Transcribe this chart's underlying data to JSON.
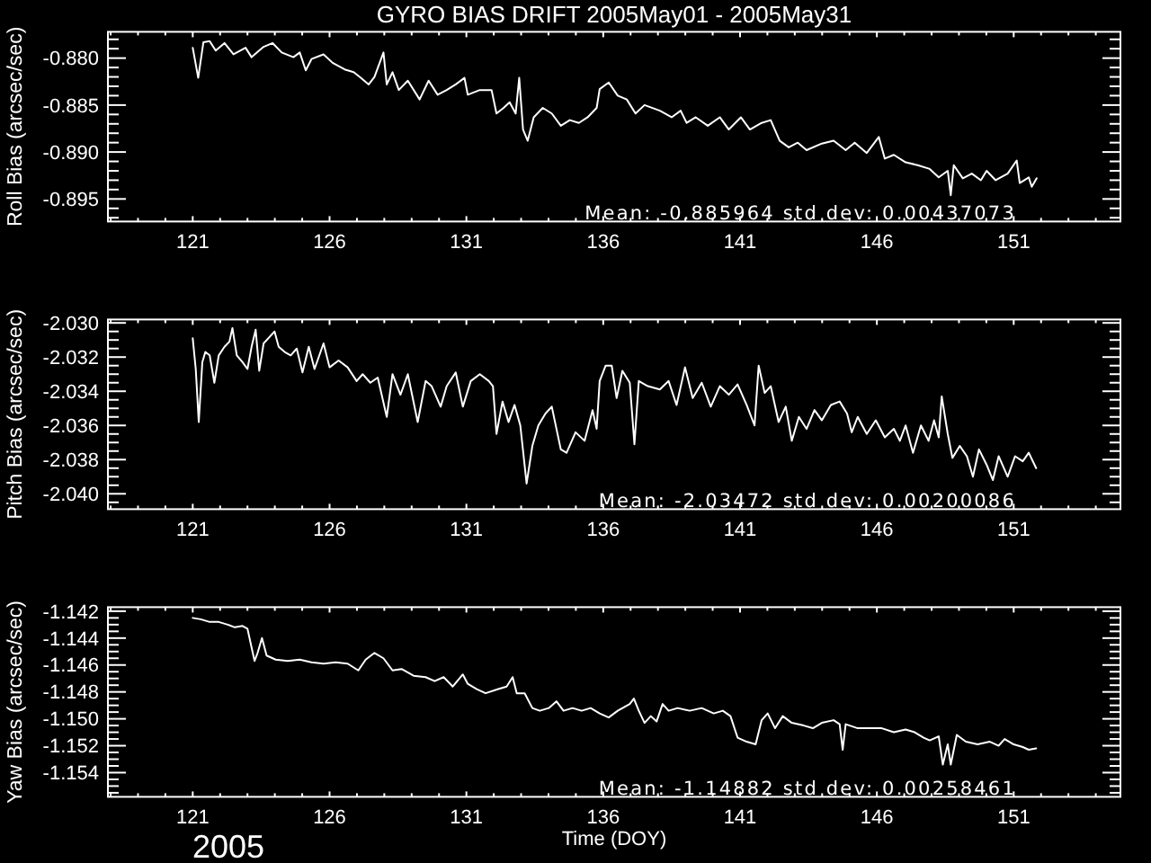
{
  "chart_data": [
    {
      "type": "line",
      "title": "GYRO BIAS DRIFT 2005May01 - 2005May31",
      "ylabel": "Roll Bias (arcsec/sec)",
      "x": [
        121.0,
        121.2,
        121.39,
        121.62,
        121.84,
        122.16,
        122.49,
        122.93,
        123.15,
        123.59,
        123.92,
        124.25,
        124.68,
        124.91,
        125.13,
        125.34,
        125.78,
        126.11,
        126.55,
        126.88,
        127.1,
        127.43,
        127.64,
        127.97,
        128.09,
        128.3,
        128.53,
        128.86,
        129.29,
        129.62,
        129.95,
        130.28,
        130.61,
        130.93,
        131.05,
        131.49,
        131.92,
        132.1,
        132.36,
        132.58,
        132.8,
        132.93,
        133.07,
        133.24,
        133.46,
        133.79,
        134.12,
        134.45,
        134.78,
        135.11,
        135.43,
        135.76,
        135.87,
        136.2,
        136.53,
        136.86,
        137.18,
        137.51,
        138.07,
        138.5,
        138.83,
        139.05,
        139.38,
        139.82,
        140.26,
        140.59,
        141.03,
        141.36,
        141.79,
        142.12,
        142.45,
        142.78,
        143.11,
        143.43,
        143.99,
        144.42,
        144.86,
        145.19,
        145.63,
        146.07,
        146.29,
        146.62,
        147.05,
        147.49,
        147.93,
        148.26,
        148.59,
        148.7,
        148.81,
        149.14,
        149.47,
        149.8,
        150.01,
        150.34,
        150.78,
        151.11,
        151.22,
        151.55,
        151.66,
        151.84
      ],
      "series": [
        {
          "color": "#ffffff",
          "values": [
            -0.8789,
            -0.8821,
            -0.8783,
            -0.8782,
            -0.8792,
            -0.8784,
            -0.8796,
            -0.8789,
            -0.8799,
            -0.8788,
            -0.8784,
            -0.8794,
            -0.8799,
            -0.8794,
            -0.8813,
            -0.8801,
            -0.8796,
            -0.8805,
            -0.8812,
            -0.8815,
            -0.882,
            -0.8828,
            -0.882,
            -0.8794,
            -0.8828,
            -0.8815,
            -0.8834,
            -0.8824,
            -0.8844,
            -0.8824,
            -0.8839,
            -0.8834,
            -0.8828,
            -0.8821,
            -0.8839,
            -0.8834,
            -0.8834,
            -0.8859,
            -0.8853,
            -0.8847,
            -0.8859,
            -0.8821,
            -0.8876,
            -0.8888,
            -0.8863,
            -0.8853,
            -0.8859,
            -0.8872,
            -0.8866,
            -0.8869,
            -0.8863,
            -0.8853,
            -0.8833,
            -0.8826,
            -0.884,
            -0.8844,
            -0.8859,
            -0.885,
            -0.8856,
            -0.8863,
            -0.8856,
            -0.8869,
            -0.8863,
            -0.8872,
            -0.8863,
            -0.8876,
            -0.8863,
            -0.8876,
            -0.8869,
            -0.8866,
            -0.8888,
            -0.8895,
            -0.889,
            -0.8898,
            -0.8891,
            -0.8888,
            -0.8898,
            -0.889,
            -0.8901,
            -0.8884,
            -0.8907,
            -0.8903,
            -0.8911,
            -0.8914,
            -0.8918,
            -0.8927,
            -0.892,
            -0.8946,
            -0.8914,
            -0.8928,
            -0.8923,
            -0.893,
            -0.892,
            -0.893,
            -0.8923,
            -0.8909,
            -0.8933,
            -0.8927,
            -0.8937,
            -0.8928
          ]
        }
      ],
      "xlim": [
        117.9,
        154.9
      ],
      "xticks": [
        {
          "value": 118,
          "label": null
        },
        {
          "value": 119,
          "label": null
        },
        {
          "value": 120,
          "label": null
        },
        121,
        {
          "value": 122,
          "label": null
        },
        {
          "value": 123,
          "label": null
        },
        {
          "value": 124,
          "label": null
        },
        {
          "value": 125,
          "label": null
        },
        126,
        {
          "value": 127,
          "label": null
        },
        {
          "value": 128,
          "label": null
        },
        {
          "value": 129,
          "label": null
        },
        {
          "value": 130,
          "label": null
        },
        131,
        {
          "value": 132,
          "label": null
        },
        {
          "value": 133,
          "label": null
        },
        {
          "value": 134,
          "label": null
        },
        {
          "value": 135,
          "label": null
        },
        136,
        {
          "value": 137,
          "label": null
        },
        {
          "value": 138,
          "label": null
        },
        {
          "value": 139,
          "label": null
        },
        {
          "value": 140,
          "label": null
        },
        141,
        {
          "value": 142,
          "label": null
        },
        {
          "value": 143,
          "label": null
        },
        {
          "value": 144,
          "label": null
        },
        {
          "value": 145,
          "label": null
        },
        146,
        {
          "value": 147,
          "label": null
        },
        {
          "value": 148,
          "label": null
        },
        {
          "value": 149,
          "label": null
        },
        {
          "value": 150,
          "label": null
        },
        151,
        {
          "value": 152,
          "label": null
        },
        {
          "value": 153,
          "label": null
        },
        {
          "value": 154,
          "label": null
        }
      ],
      "ylim": [
        -0.8974,
        -0.8772
      ],
      "yticks": [
        {
          "value": -0.897,
          "label": null
        },
        {
          "value": -0.896,
          "label": null
        },
        {
          "value": -0.895,
          "label": "-0.895"
        },
        {
          "value": -0.894,
          "label": null
        },
        {
          "value": -0.893,
          "label": null
        },
        {
          "value": -0.892,
          "label": null
        },
        {
          "value": -0.891,
          "label": null
        },
        {
          "value": -0.89,
          "label": "-0.890"
        },
        {
          "value": -0.889,
          "label": null
        },
        {
          "value": -0.888,
          "label": null
        },
        {
          "value": -0.887,
          "label": null
        },
        {
          "value": -0.886,
          "label": null
        },
        {
          "value": -0.885,
          "label": "-0.885"
        },
        {
          "value": -0.884,
          "label": null
        },
        {
          "value": -0.883,
          "label": null
        },
        {
          "value": -0.882,
          "label": null
        },
        {
          "value": -0.881,
          "label": null
        },
        {
          "value": -0.88,
          "label": "-0.880"
        },
        {
          "value": -0.879,
          "label": null
        },
        {
          "value": -0.878,
          "label": null
        }
      ],
      "annotations": [
        "Mean: -0.885964 std dev: 0.00437073"
      ]
    },
    {
      "type": "line",
      "ylabel": "Pitch Bias (arcsec/sec)",
      "x": [
        121.0,
        121.11,
        121.22,
        121.35,
        121.46,
        121.62,
        121.79,
        121.95,
        122.16,
        122.34,
        122.45,
        122.61,
        122.82,
        123.0,
        123.15,
        123.3,
        123.43,
        123.59,
        123.76,
        123.99,
        124.14,
        124.36,
        124.58,
        124.8,
        125.01,
        125.24,
        125.45,
        125.78,
        126.0,
        126.33,
        126.66,
        126.99,
        127.21,
        127.49,
        127.76,
        128.09,
        128.3,
        128.59,
        128.86,
        129.22,
        129.51,
        129.73,
        130.06,
        130.28,
        130.61,
        130.87,
        131.16,
        131.49,
        131.82,
        131.97,
        132.1,
        132.32,
        132.54,
        132.76,
        132.97,
        133.2,
        133.41,
        133.63,
        133.89,
        134.12,
        134.45,
        134.66,
        134.99,
        135.32,
        135.61,
        135.76,
        135.87,
        136.09,
        136.31,
        136.49,
        136.7,
        136.97,
        137.14,
        137.3,
        137.63,
        138.07,
        138.39,
        138.68,
        138.99,
        139.27,
        139.6,
        139.93,
        140.26,
        140.59,
        140.91,
        141.24,
        141.53,
        141.68,
        141.9,
        142.12,
        142.41,
        142.67,
        142.89,
        143.15,
        143.43,
        143.72,
        143.99,
        144.32,
        144.64,
        144.91,
        145.08,
        145.3,
        145.63,
        145.96,
        146.29,
        146.62,
        146.84,
        147.05,
        147.32,
        147.61,
        147.89,
        148.09,
        148.26,
        148.37,
        148.59,
        148.76,
        149.03,
        149.29,
        149.51,
        149.73,
        150.01,
        150.24,
        150.45,
        150.78,
        151.05,
        151.33,
        151.55,
        151.82
      ],
      "series": [
        {
          "color": "#ffffff",
          "values": [
            -2.0309,
            -2.0327,
            -2.0358,
            -2.0323,
            -2.0317,
            -2.0319,
            -2.0335,
            -2.0319,
            -2.0314,
            -2.0311,
            -2.0303,
            -2.0319,
            -2.0323,
            -2.0327,
            -2.0314,
            -2.0304,
            -2.0328,
            -2.0312,
            -2.0309,
            -2.0305,
            -2.0314,
            -2.0317,
            -2.0319,
            -2.0315,
            -2.0329,
            -2.0314,
            -2.0327,
            -2.0312,
            -2.0326,
            -2.0322,
            -2.0326,
            -2.0334,
            -2.033,
            -2.0335,
            -2.0332,
            -2.0355,
            -2.033,
            -2.0342,
            -2.033,
            -2.0358,
            -2.0334,
            -2.0337,
            -2.0349,
            -2.0337,
            -2.0329,
            -2.0349,
            -2.0334,
            -2.033,
            -2.0334,
            -2.0337,
            -2.0365,
            -2.0346,
            -2.0358,
            -2.0348,
            -2.036,
            -2.0394,
            -2.0372,
            -2.036,
            -2.0353,
            -2.0349,
            -2.0374,
            -2.0376,
            -2.0364,
            -2.0369,
            -2.0351,
            -2.0362,
            -2.0334,
            -2.0325,
            -2.0325,
            -2.0344,
            -2.0328,
            -2.0335,
            -2.0371,
            -2.0334,
            -2.0337,
            -2.0339,
            -2.0334,
            -2.0348,
            -2.0326,
            -2.0344,
            -2.0335,
            -2.0349,
            -2.0337,
            -2.0342,
            -2.0336,
            -2.0348,
            -2.036,
            -2.0325,
            -2.0341,
            -2.0337,
            -2.0358,
            -2.0349,
            -2.0369,
            -2.0355,
            -2.0362,
            -2.0351,
            -2.0357,
            -2.0348,
            -2.0346,
            -2.0353,
            -2.0364,
            -2.0355,
            -2.0365,
            -2.0357,
            -2.0367,
            -2.0362,
            -2.0369,
            -2.036,
            -2.0376,
            -2.036,
            -2.0369,
            -2.0357,
            -2.0367,
            -2.0343,
            -2.0365,
            -2.0379,
            -2.0372,
            -2.0378,
            -2.039,
            -2.0374,
            -2.0383,
            -2.0392,
            -2.0378,
            -2.039,
            -2.0378,
            -2.0381,
            -2.0376,
            -2.0385
          ]
        }
      ],
      "xlim": [
        117.9,
        154.9
      ],
      "xticks": [
        {
          "value": 118,
          "label": null
        },
        {
          "value": 119,
          "label": null
        },
        {
          "value": 120,
          "label": null
        },
        121,
        {
          "value": 122,
          "label": null
        },
        {
          "value": 123,
          "label": null
        },
        {
          "value": 124,
          "label": null
        },
        {
          "value": 125,
          "label": null
        },
        126,
        {
          "value": 127,
          "label": null
        },
        {
          "value": 128,
          "label": null
        },
        {
          "value": 129,
          "label": null
        },
        {
          "value": 130,
          "label": null
        },
        131,
        {
          "value": 132,
          "label": null
        },
        {
          "value": 133,
          "label": null
        },
        {
          "value": 134,
          "label": null
        },
        {
          "value": 135,
          "label": null
        },
        136,
        {
          "value": 137,
          "label": null
        },
        {
          "value": 138,
          "label": null
        },
        {
          "value": 139,
          "label": null
        },
        {
          "value": 140,
          "label": null
        },
        141,
        {
          "value": 142,
          "label": null
        },
        {
          "value": 143,
          "label": null
        },
        {
          "value": 144,
          "label": null
        },
        {
          "value": 145,
          "label": null
        },
        146,
        {
          "value": 147,
          "label": null
        },
        {
          "value": 148,
          "label": null
        },
        {
          "value": 149,
          "label": null
        },
        {
          "value": 150,
          "label": null
        },
        151,
        {
          "value": 152,
          "label": null
        },
        {
          "value": 153,
          "label": null
        },
        {
          "value": 154,
          "label": null
        }
      ],
      "ylim": [
        -2.0409,
        -2.0298
      ],
      "yticks": [
        {
          "value": -2.0405,
          "label": null
        },
        {
          "value": -2.04,
          "label": "-2.040"
        },
        {
          "value": -2.0395,
          "label": null
        },
        {
          "value": -2.039,
          "label": null
        },
        {
          "value": -2.0385,
          "label": null
        },
        {
          "value": -2.038,
          "label": "-2.038"
        },
        {
          "value": -2.0375,
          "label": null
        },
        {
          "value": -2.037,
          "label": null
        },
        {
          "value": -2.0365,
          "label": null
        },
        {
          "value": -2.036,
          "label": "-2.036"
        },
        {
          "value": -2.0355,
          "label": null
        },
        {
          "value": -2.035,
          "label": null
        },
        {
          "value": -2.0345,
          "label": null
        },
        {
          "value": -2.034,
          "label": "-2.034"
        },
        {
          "value": -2.0335,
          "label": null
        },
        {
          "value": -2.033,
          "label": null
        },
        {
          "value": -2.0325,
          "label": null
        },
        {
          "value": -2.032,
          "label": "-2.032"
        },
        {
          "value": -2.0315,
          "label": null
        },
        {
          "value": -2.031,
          "label": null
        },
        {
          "value": -2.0305,
          "label": null
        },
        {
          "value": -2.03,
          "label": "-2.030"
        }
      ],
      "annotations": [
        "Mean: -2.03472 std dev: 0.00200086"
      ]
    },
    {
      "type": "line",
      "ylabel": "Yaw Bias (arcsec/sec)",
      "xlabel": "Time (DOY)",
      "x": [
        121.0,
        121.29,
        121.62,
        121.95,
        122.28,
        122.54,
        122.82,
        123.0,
        123.15,
        123.26,
        123.37,
        123.53,
        123.7,
        124.03,
        124.47,
        124.91,
        125.34,
        125.78,
        126.22,
        126.66,
        127.05,
        127.32,
        127.64,
        127.97,
        128.3,
        128.63,
        129.07,
        129.51,
        129.84,
        130.17,
        130.5,
        130.87,
        131.05,
        131.38,
        131.7,
        132.14,
        132.47,
        132.69,
        132.84,
        133.13,
        133.41,
        133.68,
        134.01,
        134.29,
        134.55,
        134.88,
        135.21,
        135.54,
        135.87,
        136.2,
        136.53,
        136.97,
        137.12,
        137.3,
        137.51,
        137.74,
        137.95,
        138.17,
        138.39,
        138.72,
        139.16,
        139.6,
        140.04,
        140.37,
        140.65,
        140.91,
        141.24,
        141.57,
        141.79,
        142.01,
        142.28,
        142.56,
        142.89,
        143.33,
        143.66,
        143.99,
        144.42,
        144.64,
        144.75,
        144.86,
        145.3,
        145.74,
        146.18,
        146.62,
        147.05,
        147.38,
        147.71,
        147.93,
        148.26,
        148.41,
        148.59,
        148.7,
        148.92,
        149.25,
        149.68,
        150.13,
        150.45,
        150.67,
        151.0,
        151.33,
        151.55,
        151.82
      ],
      "series": [
        {
          "color": "#ffffff",
          "values": [
            -1.1425,
            -1.1426,
            -1.1428,
            -1.1428,
            -1.143,
            -1.1432,
            -1.1431,
            -1.1433,
            -1.1447,
            -1.1457,
            -1.1451,
            -1.144,
            -1.1453,
            -1.1456,
            -1.1457,
            -1.1456,
            -1.1458,
            -1.1459,
            -1.1458,
            -1.1459,
            -1.1464,
            -1.1456,
            -1.1451,
            -1.1455,
            -1.1464,
            -1.1463,
            -1.1468,
            -1.1469,
            -1.1472,
            -1.1469,
            -1.1476,
            -1.1467,
            -1.1474,
            -1.1478,
            -1.1481,
            -1.1478,
            -1.1476,
            -1.1469,
            -1.1481,
            -1.1481,
            -1.1492,
            -1.1494,
            -1.1492,
            -1.1487,
            -1.1494,
            -1.1492,
            -1.1494,
            -1.1492,
            -1.1496,
            -1.1499,
            -1.1494,
            -1.1489,
            -1.1485,
            -1.1494,
            -1.1503,
            -1.1498,
            -1.1502,
            -1.1489,
            -1.1494,
            -1.1492,
            -1.1494,
            -1.1492,
            -1.1496,
            -1.1494,
            -1.1498,
            -1.1514,
            -1.1517,
            -1.1519,
            -1.1501,
            -1.1496,
            -1.1507,
            -1.1498,
            -1.1503,
            -1.1505,
            -1.1507,
            -1.1503,
            -1.1501,
            -1.1504,
            -1.1523,
            -1.1504,
            -1.1507,
            -1.1507,
            -1.1507,
            -1.151,
            -1.1508,
            -1.151,
            -1.1514,
            -1.1516,
            -1.1513,
            -1.1534,
            -1.1519,
            -1.1534,
            -1.1512,
            -1.1517,
            -1.1519,
            -1.1517,
            -1.152,
            -1.1515,
            -1.1519,
            -1.1521,
            -1.1523,
            -1.1522
          ]
        }
      ],
      "xlim": [
        117.9,
        154.9
      ],
      "xticks": [
        {
          "value": 118,
          "label": null
        },
        {
          "value": 119,
          "label": null
        },
        {
          "value": 120,
          "label": null
        },
        121,
        {
          "value": 122,
          "label": null
        },
        {
          "value": 123,
          "label": null
        },
        {
          "value": 124,
          "label": null
        },
        {
          "value": 125,
          "label": null
        },
        126,
        {
          "value": 127,
          "label": null
        },
        {
          "value": 128,
          "label": null
        },
        {
          "value": 129,
          "label": null
        },
        {
          "value": 130,
          "label": null
        },
        131,
        {
          "value": 132,
          "label": null
        },
        {
          "value": 133,
          "label": null
        },
        {
          "value": 134,
          "label": null
        },
        {
          "value": 135,
          "label": null
        },
        136,
        {
          "value": 137,
          "label": null
        },
        {
          "value": 138,
          "label": null
        },
        {
          "value": 139,
          "label": null
        },
        {
          "value": 140,
          "label": null
        },
        141,
        {
          "value": 142,
          "label": null
        },
        {
          "value": 143,
          "label": null
        },
        {
          "value": 144,
          "label": null
        },
        {
          "value": 145,
          "label": null
        },
        146,
        {
          "value": 147,
          "label": null
        },
        {
          "value": 148,
          "label": null
        },
        {
          "value": 149,
          "label": null
        },
        {
          "value": 150,
          "label": null
        },
        151,
        {
          "value": 152,
          "label": null
        },
        {
          "value": 153,
          "label": null
        },
        {
          "value": 154,
          "label": null
        }
      ],
      "ylim": [
        -1.1558,
        -1.1417
      ],
      "yticks": [
        {
          "value": -1.1555,
          "label": null
        },
        {
          "value": -1.155,
          "label": null
        },
        {
          "value": -1.1545,
          "label": null
        },
        {
          "value": -1.154,
          "label": "-1.154"
        },
        {
          "value": -1.1535,
          "label": null
        },
        {
          "value": -1.153,
          "label": null
        },
        {
          "value": -1.1525,
          "label": null
        },
        {
          "value": -1.152,
          "label": "-1.152"
        },
        {
          "value": -1.1515,
          "label": null
        },
        {
          "value": -1.151,
          "label": null
        },
        {
          "value": -1.1505,
          "label": null
        },
        {
          "value": -1.15,
          "label": "-1.150"
        },
        {
          "value": -1.1495,
          "label": null
        },
        {
          "value": -1.149,
          "label": null
        },
        {
          "value": -1.1485,
          "label": null
        },
        {
          "value": -1.148,
          "label": "-1.148"
        },
        {
          "value": -1.1475,
          "label": null
        },
        {
          "value": -1.147,
          "label": null
        },
        {
          "value": -1.1465,
          "label": null
        },
        {
          "value": -1.146,
          "label": "-1.146"
        },
        {
          "value": -1.1455,
          "label": null
        },
        {
          "value": -1.145,
          "label": null
        },
        {
          "value": -1.1445,
          "label": null
        },
        {
          "value": -1.144,
          "label": "-1.144"
        },
        {
          "value": -1.1435,
          "label": null
        },
        {
          "value": -1.143,
          "label": null
        },
        {
          "value": -1.1425,
          "label": null
        },
        {
          "value": -1.142,
          "label": "-1.142"
        }
      ],
      "annotations": [
        "Mean: -1.14882 std dev: 0.00258461",
        "2005"
      ]
    }
  ]
}
